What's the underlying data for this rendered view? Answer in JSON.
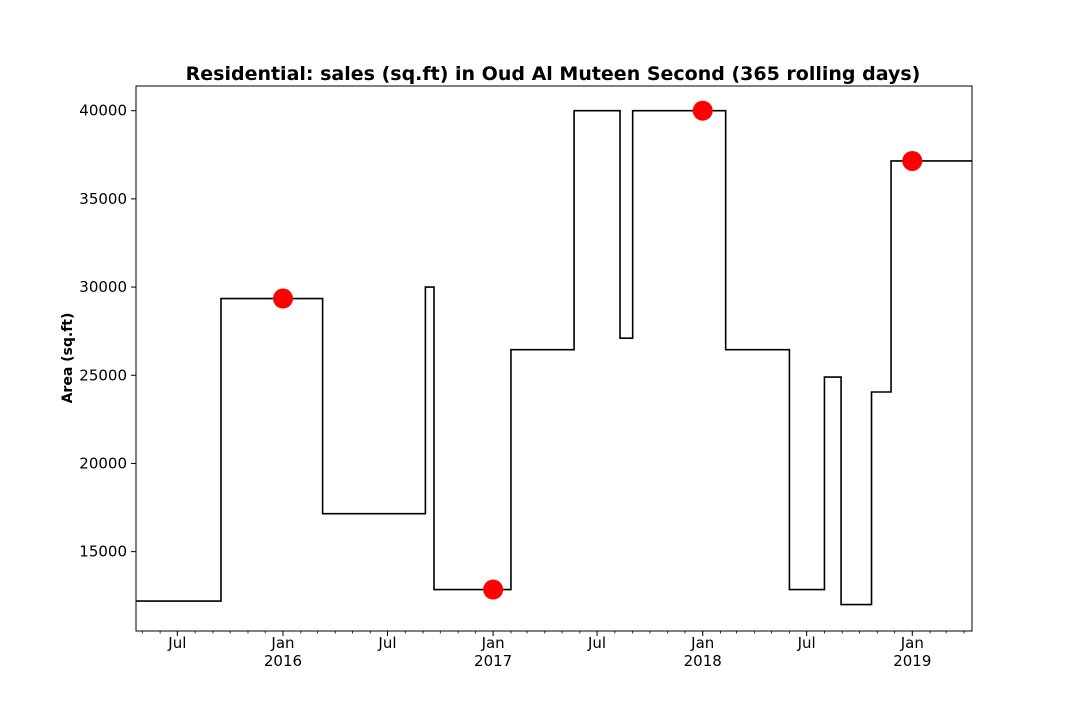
{
  "chart_data": {
    "type": "line",
    "title": "Residential: sales (sq.ft) in Oud Al Muteen Second (365 rolling days)",
    "xlabel": "",
    "ylabel": "Area (sq.ft)",
    "x_axis": "date",
    "xlim": [
      "2015-04-20",
      "2019-04-15"
    ],
    "ylim": [
      10500,
      41400
    ],
    "grid": false,
    "legend": "none",
    "colors": {
      "line": "#000000",
      "marker": "#ff0000"
    },
    "y_ticks": [
      15000,
      20000,
      25000,
      30000,
      35000,
      40000
    ],
    "x_ticks": [
      {
        "date": "2015-07-01",
        "label": "Jul",
        "year": ""
      },
      {
        "date": "2016-01-01",
        "label": "Jan",
        "year": "2016"
      },
      {
        "date": "2016-07-01",
        "label": "Jul",
        "year": ""
      },
      {
        "date": "2017-01-01",
        "label": "Jan",
        "year": "2017"
      },
      {
        "date": "2017-07-01",
        "label": "Jul",
        "year": ""
      },
      {
        "date": "2018-01-01",
        "label": "Jan",
        "year": "2018"
      },
      {
        "date": "2018-07-01",
        "label": "Jul",
        "year": ""
      },
      {
        "date": "2019-01-01",
        "label": "Jan",
        "year": "2019"
      }
    ],
    "series": [
      {
        "style": "step-post",
        "points": [
          {
            "x": "2015-04-20",
            "y": 12200
          },
          {
            "x": "2015-09-15",
            "y": 29350
          },
          {
            "x": "2016-03-10",
            "y": 17150
          },
          {
            "x": "2016-09-05",
            "y": 30000
          },
          {
            "x": "2016-09-20",
            "y": 12850
          },
          {
            "x": "2017-02-01",
            "y": 26450
          },
          {
            "x": "2017-05-22",
            "y": 40000
          },
          {
            "x": "2017-08-10",
            "y": 27100
          },
          {
            "x": "2017-09-01",
            "y": 40000
          },
          {
            "x": "2018-02-10",
            "y": 26450
          },
          {
            "x": "2018-06-01",
            "y": 12850
          },
          {
            "x": "2018-08-01",
            "y": 24900
          },
          {
            "x": "2018-08-30",
            "y": 12000
          },
          {
            "x": "2018-10-22",
            "y": 24050
          },
          {
            "x": "2018-11-25",
            "y": 37150
          },
          {
            "x": "2019-04-15",
            "y": 37150
          }
        ]
      }
    ],
    "markers": [
      {
        "x": "2016-01-01",
        "y": 29350
      },
      {
        "x": "2017-01-01",
        "y": 12850
      },
      {
        "x": "2018-01-01",
        "y": 40000
      },
      {
        "x": "2019-01-01",
        "y": 37150
      }
    ]
  }
}
